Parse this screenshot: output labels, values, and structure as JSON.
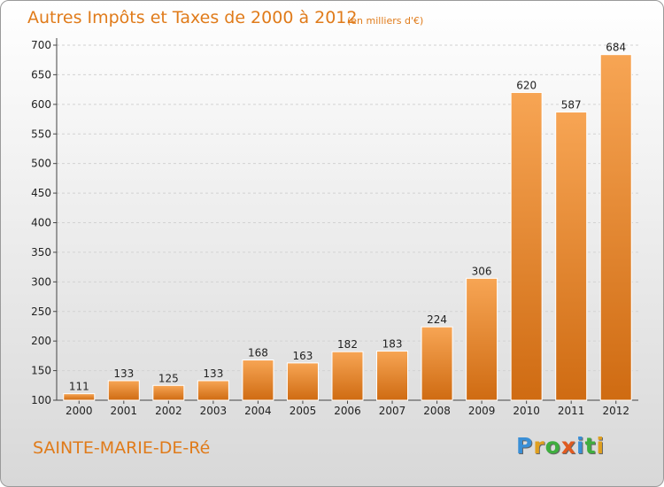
{
  "header": {
    "title": "Autres Impôts et Taxes de 2000 à 2012",
    "unit": "(en milliers d'€)"
  },
  "footer": {
    "commune": "SAINTE-MARIE-DE-Ré",
    "logo_letters": [
      {
        "char": "P",
        "color": "#3a8fd6"
      },
      {
        "char": "r",
        "color": "#e0a020"
      },
      {
        "char": "o",
        "color": "#3fae3f"
      },
      {
        "char": "x",
        "color": "#e05a20"
      },
      {
        "char": "i",
        "color": "#3a8fd6"
      },
      {
        "char": "t",
        "color": "#3fae3f"
      },
      {
        "char": "i",
        "color": "#e0a020"
      }
    ]
  },
  "chart_data": {
    "type": "bar",
    "categories": [
      "2000",
      "2001",
      "2002",
      "2003",
      "2004",
      "2005",
      "2006",
      "2007",
      "2008",
      "2009",
      "2010",
      "2011",
      "2012"
    ],
    "values": [
      111,
      133,
      125,
      133,
      168,
      163,
      182,
      183,
      224,
      306,
      620,
      587,
      684
    ],
    "ylim": [
      100,
      700
    ],
    "yticks": [
      100,
      150,
      200,
      250,
      300,
      350,
      400,
      450,
      500,
      550,
      600,
      650,
      700
    ],
    "grid": true,
    "bar_color": "#e8892e"
  }
}
